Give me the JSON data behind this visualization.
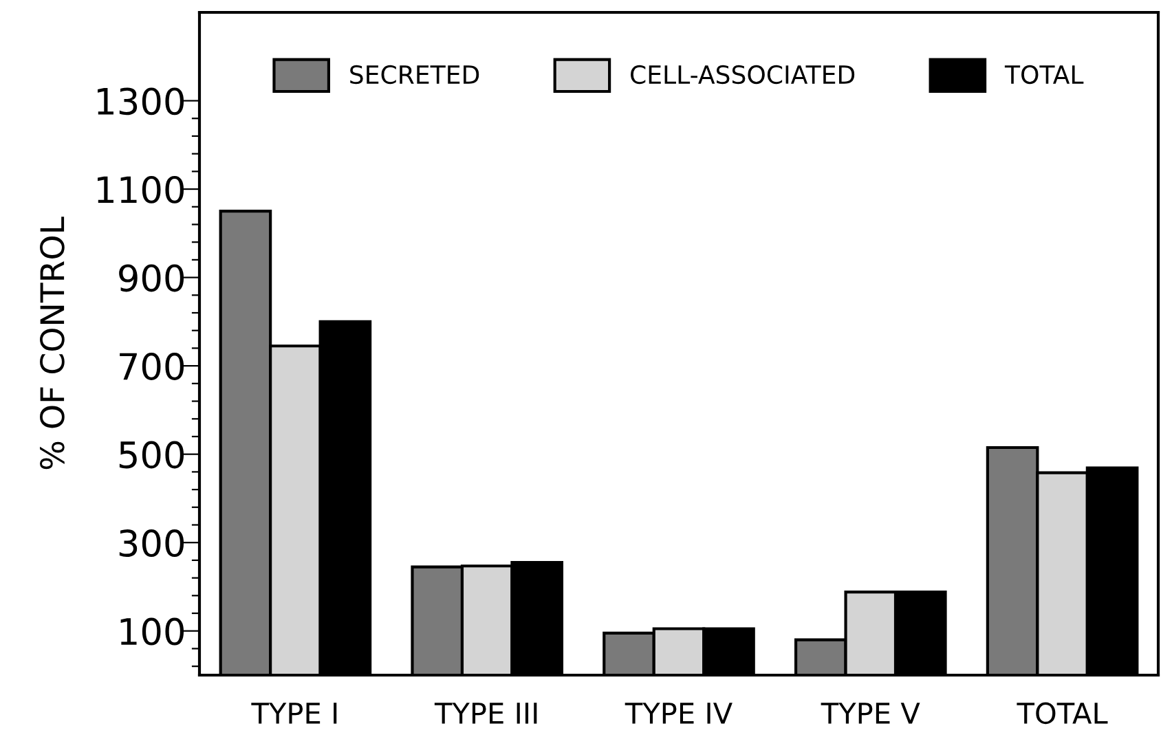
{
  "chart_data": {
    "type": "bar",
    "ylabel": "% OF CONTROL",
    "categories": [
      "TYPE I",
      "TYPE III",
      "TYPE IV",
      "TYPE V",
      "TOTAL"
    ],
    "series": [
      {
        "name": "SECRETED",
        "color": "#7a7a7a",
        "values": [
          1050,
          245,
          95,
          80,
          515
        ]
      },
      {
        "name": "CELL-ASSOCIATED",
        "color": "#d4d4d4",
        "values": [
          745,
          247,
          105,
          188,
          458
        ]
      },
      {
        "name": "TOTAL",
        "color": "#000000",
        "values": [
          800,
          255,
          105,
          188,
          469
        ]
      }
    ],
    "ylim": [
      0,
      1500
    ],
    "yticks": [
      {
        "value": 20,
        "label": null
      },
      {
        "value": 60,
        "label": null
      },
      100,
      {
        "value": 140,
        "label": null
      },
      {
        "value": 180,
        "label": null
      },
      {
        "value": 220,
        "label": null
      },
      {
        "value": 260,
        "label": null
      },
      300,
      {
        "value": 340,
        "label": null
      },
      {
        "value": 380,
        "label": null
      },
      {
        "value": 420,
        "label": null
      },
      {
        "value": 460,
        "label": null
      },
      500,
      {
        "value": 540,
        "label": null
      },
      {
        "value": 580,
        "label": null
      },
      {
        "value": 620,
        "label": null
      },
      {
        "value": 660,
        "label": null
      },
      700,
      {
        "value": 740,
        "label": null
      },
      {
        "value": 780,
        "label": null
      },
      {
        "value": 820,
        "label": null
      },
      {
        "value": 860,
        "label": null
      },
      900,
      {
        "value": 940,
        "label": null
      },
      {
        "value": 980,
        "label": null
      },
      {
        "value": 1020,
        "label": null
      },
      {
        "value": 1060,
        "label": null
      },
      1100,
      {
        "value": 1140,
        "label": null
      },
      {
        "value": 1180,
        "label": null
      },
      {
        "value": 1220,
        "label": null
      },
      {
        "value": 1260,
        "label": null
      },
      1300
    ],
    "grid": false,
    "legend": "top"
  }
}
